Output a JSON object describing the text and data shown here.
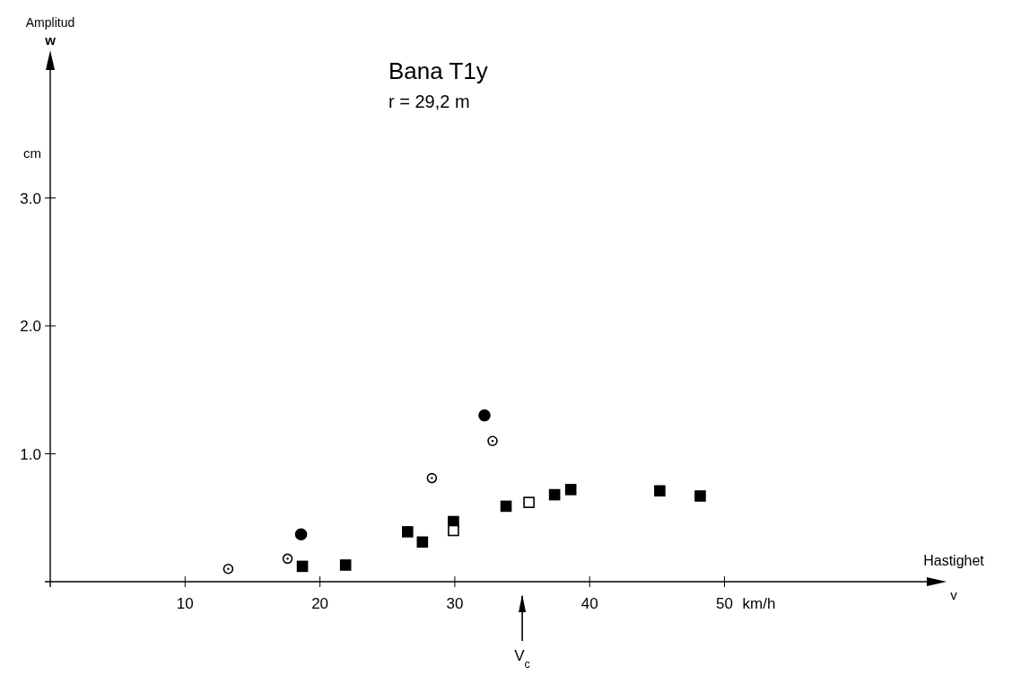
{
  "chart_data": {
    "type": "scatter",
    "title": "Bana T1y",
    "subtitle": "r = 29,2 m",
    "xlabel": "Hastighet v",
    "ylabel": "Amplitud w",
    "annotations": [
      "cm",
      "km/h"
    ],
    "ref_lines": [
      {
        "axis": "x",
        "value": 35,
        "label": "V$_{c}$"
      }
    ],
    "xlim": [
      0,
      65
    ],
    "xticks": [
      10,
      20,
      30,
      40,
      50
    ],
    "ylim": [
      0,
      4
    ],
    "yticks": [
      {
        "value": 1,
        "label": "1.0"
      },
      {
        "value": 2,
        "label": "2.0"
      },
      {
        "value": 3,
        "label": "3.0"
      }
    ],
    "grid": false,
    "series": [
      {
        "marker": "circle",
        "color": "#000000",
        "x": [
          18.6,
          32.2
        ],
        "values": [
          0.37,
          1.3
        ]
      },
      {
        "marker": "circle",
        "color": "#ffffff",
        "x": [
          13.2,
          17.6,
          28.3,
          32.8
        ],
        "values": [
          0.1,
          0.18,
          0.81,
          1.1
        ]
      },
      {
        "marker": "square",
        "color": "#000000",
        "x": [
          18.7,
          21.9,
          26.5,
          27.6,
          29.9,
          33.8,
          37.4,
          38.6,
          45.2,
          48.2
        ],
        "values": [
          0.12,
          0.13,
          0.39,
          0.31,
          0.47,
          0.59,
          0.68,
          0.72,
          0.71,
          0.67
        ]
      },
      {
        "marker": "square",
        "color": "#ffffff",
        "x": [
          29.9,
          35.5
        ],
        "values": [
          0.4,
          0.62
        ]
      }
    ]
  }
}
